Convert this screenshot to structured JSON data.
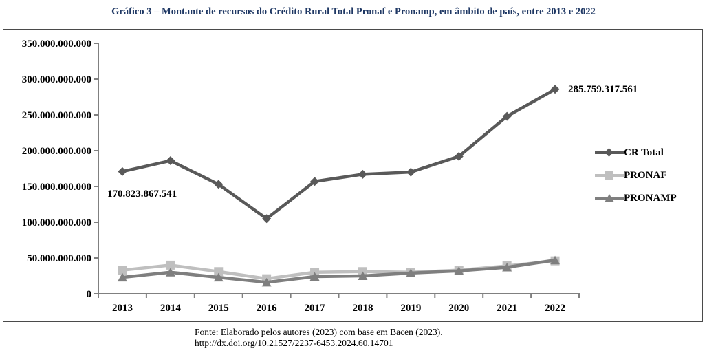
{
  "title": "Gráfico 3 – Montante de recursos do Crédito Rural Total Pronaf e Pronamp, em âmbito de país, entre 2013 e 2022",
  "title_color": "#1f3864",
  "chart_data": {
    "type": "line",
    "categories": [
      "2013",
      "2014",
      "2015",
      "2016",
      "2017",
      "2018",
      "2019",
      "2020",
      "2021",
      "2022"
    ],
    "series": [
      {
        "name": "CR Total",
        "marker": "diamond",
        "color": "#595959",
        "values": [
          170823867541,
          186000000000,
          153000000000,
          105000000000,
          157000000000,
          167000000000,
          170000000000,
          192000000000,
          248000000000,
          285759317561
        ]
      },
      {
        "name": "PRONAF",
        "marker": "square",
        "color": "#bfbfbf",
        "values": [
          33000000000,
          40000000000,
          31000000000,
          21000000000,
          30000000000,
          31000000000,
          30000000000,
          33000000000,
          39000000000,
          46000000000
        ]
      },
      {
        "name": "PRONAMP",
        "marker": "triangle",
        "color": "#7f7f7f",
        "values": [
          23000000000,
          30000000000,
          23000000000,
          16000000000,
          24000000000,
          25000000000,
          29000000000,
          32000000000,
          37000000000,
          47000000000
        ]
      }
    ],
    "y_axis": {
      "min": 0,
      "max": 350000000000,
      "step": 50000000000,
      "tick_labels": [
        "0",
        "50.000.000.000",
        "100.000.000.000",
        "150.000.000.000",
        "200.000.000.000",
        "250.000.000.000",
        "300.000.000.000",
        "350.000.000.000"
      ]
    },
    "xlabel": "",
    "ylabel": "",
    "grid": false,
    "legend_position": "right",
    "axis_color": "#808080",
    "annotations": [
      {
        "series": "CR Total",
        "category": "2013",
        "text": "170.823.867.541",
        "placement": "below-left"
      },
      {
        "series": "CR Total",
        "category": "2022",
        "text": "285.759.317.561",
        "placement": "right"
      }
    ]
  },
  "footer": {
    "source_line": "Fonte: Elaborado pelos autores (2023) com base em Bacen (2023).",
    "doi_line": "http://dx.doi.org/10.21527/2237-6453.2024.60.14701"
  }
}
